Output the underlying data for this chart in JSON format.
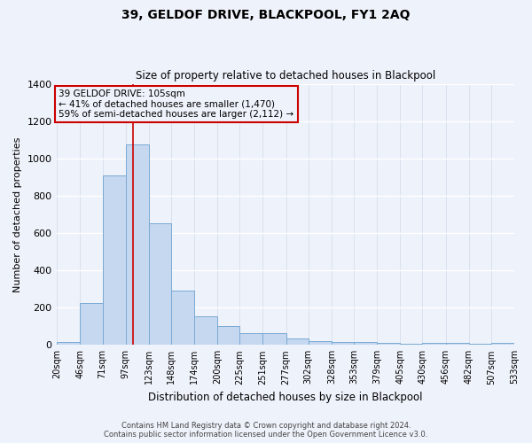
{
  "title": "39, GELDOF DRIVE, BLACKPOOL, FY1 2AQ",
  "subtitle": "Size of property relative to detached houses in Blackpool",
  "xlabel": "Distribution of detached houses by size in Blackpool",
  "ylabel": "Number of detached properties",
  "bar_color": "#c5d8f0",
  "bar_edge_color": "#7aaad4",
  "background_color": "#eef2fa",
  "grid_color": "#d8e2f0",
  "annotation_box_color": "#cc0000",
  "vline_color": "#cc0000",
  "vline_x": 105,
  "annotation_title": "39 GELDOF DRIVE: 105sqm",
  "annotation_line1": "← 41% of detached houses are smaller (1,470)",
  "annotation_line2": "59% of semi-detached houses are larger (2,112) →",
  "bins": [
    20,
    46,
    71,
    97,
    123,
    148,
    174,
    200,
    225,
    251,
    277,
    302,
    328,
    353,
    379,
    405,
    430,
    456,
    482,
    507,
    533
  ],
  "counts": [
    15,
    225,
    910,
    1075,
    650,
    290,
    155,
    100,
    65,
    65,
    35,
    20,
    15,
    15,
    10,
    5,
    10,
    10,
    5,
    10
  ],
  "ylim": [
    0,
    1400
  ],
  "yticks": [
    0,
    200,
    400,
    600,
    800,
    1000,
    1200,
    1400
  ],
  "footer_line1": "Contains HM Land Registry data © Crown copyright and database right 2024.",
  "footer_line2": "Contains public sector information licensed under the Open Government Licence v3.0."
}
